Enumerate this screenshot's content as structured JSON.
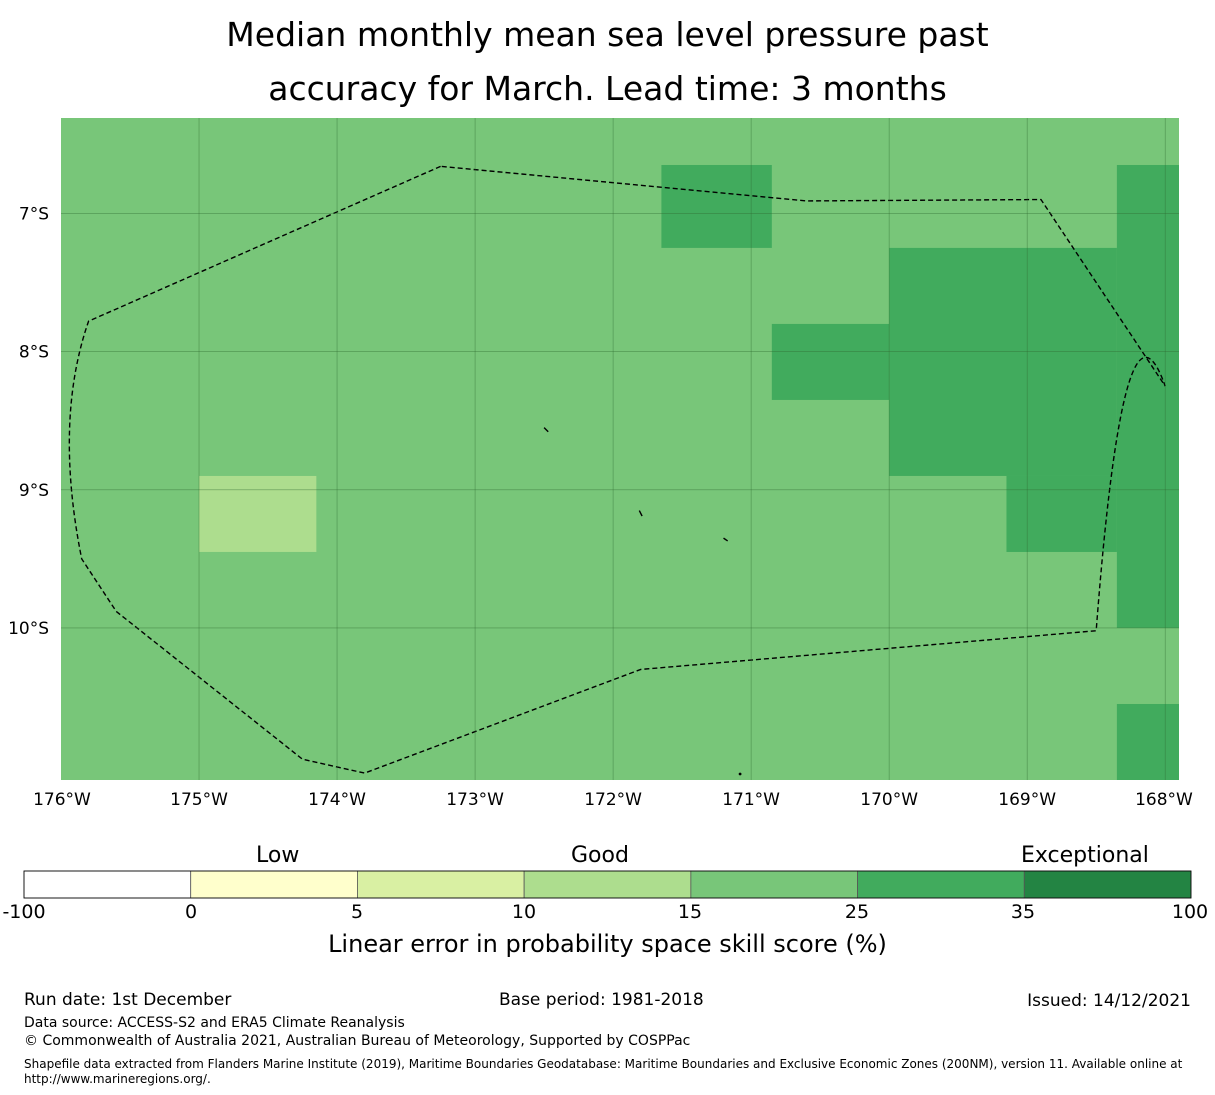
{
  "title": {
    "line1": "Median monthly mean sea level pressure past",
    "line2": "accuracy for March. Lead time: 3 months"
  },
  "map": {
    "lat_labels": [
      "7°S",
      "8°S",
      "9°S",
      "10°S"
    ],
    "lon_labels": [
      "176°W",
      "175°W",
      "174°W",
      "173°W",
      "172°W",
      "171°W",
      "170°W",
      "169°W",
      "168°W"
    ],
    "colors": {
      "base": "#78c679",
      "high": "#41ab5d",
      "low": "#addd8e",
      "grid": "#2e6b30",
      "boundary": "#000000"
    },
    "cells": [
      {
        "category": "25-35",
        "lon_min": -171.65,
        "lon_max": -170.85,
        "lat_min": -7.25,
        "lat_max": -6.65
      },
      {
        "category": "25-35",
        "lon_min": -170.85,
        "lon_max": -170.0,
        "lat_min": -8.35,
        "lat_max": -7.8
      },
      {
        "category": "25-35",
        "lon_min": -170.0,
        "lon_max": -168.35,
        "lat_min": -8.9,
        "lat_max": -7.25
      },
      {
        "category": "25-35",
        "lon_min": -169.15,
        "lon_max": -168.35,
        "lat_min": -9.45,
        "lat_max": -8.9
      },
      {
        "category": "25-35",
        "lon_min": -168.35,
        "lon_max": -167.9,
        "lat_min": -10.0,
        "lat_max": -6.65
      },
      {
        "category": "25-35",
        "lon_min": -168.35,
        "lon_max": -167.9,
        "lat_min": -11.6,
        "lat_max": -10.55
      },
      {
        "category": "10-15",
        "lon_min": -175.0,
        "lon_max": -174.15,
        "lat_min": -9.45,
        "lat_max": -8.9
      }
    ],
    "eez_boundary": [
      [
        -175.8,
        -7.78
      ],
      [
        -175.87,
        -7.9
      ],
      [
        -175.95,
        -8.5
      ],
      [
        -175.85,
        -9.5
      ],
      [
        -175.6,
        -9.88
      ],
      [
        -174.25,
        -10.95
      ],
      [
        -173.8,
        -11.05
      ],
      [
        -173.25,
        -6.66
      ],
      [
        -171.6,
        -6.73
      ],
      [
        -170.6,
        -6.91
      ],
      [
        -168.9,
        -6.9
      ],
      [
        -168.0,
        -8.25
      ],
      [
        -168.5,
        -10.02
      ],
      [
        -171.8,
        -10.3
      ]
    ]
  },
  "colorbar": {
    "category_labels": [
      "Low",
      "Good",
      "Exceptional"
    ],
    "ticks": [
      "-100",
      "0",
      "5",
      "10",
      "15",
      "25",
      "35",
      "100"
    ],
    "colors": [
      "#ffffff",
      "#ffffcc",
      "#d9f0a3",
      "#addd8e",
      "#78c679",
      "#41ab5d",
      "#238443"
    ],
    "title": "Linear error in probability space skill score (%)"
  },
  "footer": {
    "run_date": "Run date: 1st December",
    "base_period": "Base period: 1981-2018",
    "issued": "Issued: 14/12/2021",
    "data_source": "Data source: ACCESS-S2 and ERA5 Climate Reanalysis",
    "copyright": "© Commonwealth of Australia 2021, Australian Bureau of Meteorology, Supported by COSPPac",
    "shapefile": "Shapefile data extracted from Flanders Marine Institute (2019), Maritime Boundaries Geodatabase: Maritime Boundaries and Exclusive Economic Zones (200NM), version 11. Available online at http://www.marineregions.org/."
  }
}
